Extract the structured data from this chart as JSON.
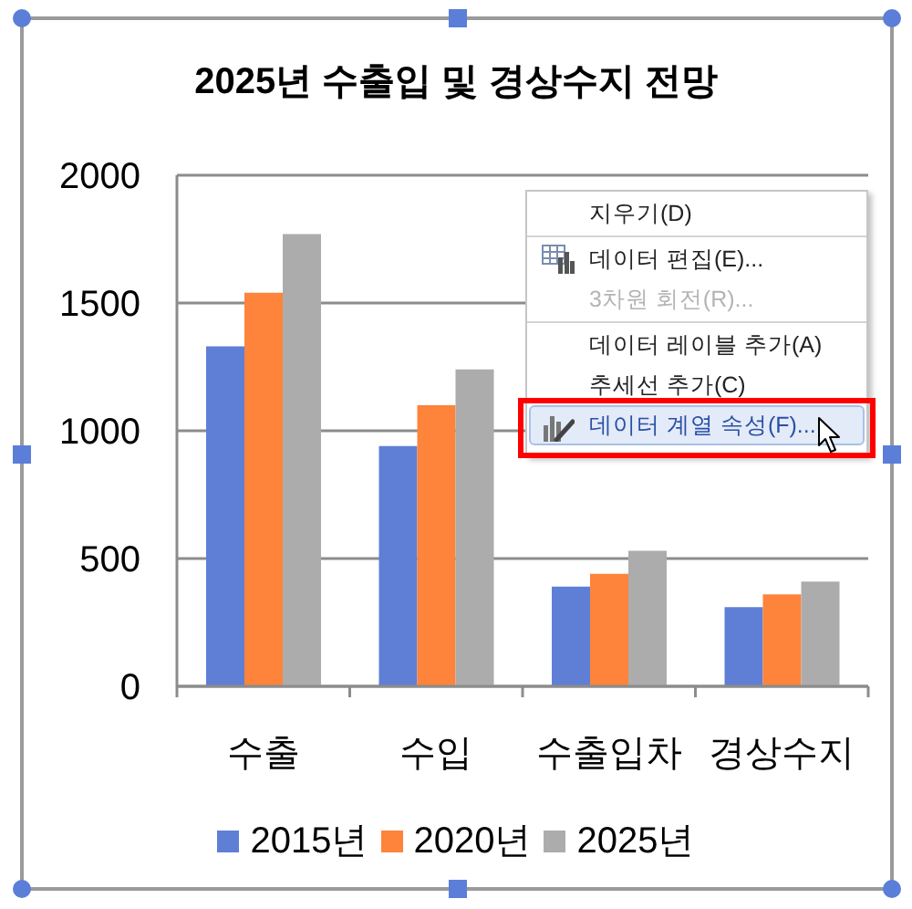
{
  "chart_data": {
    "type": "bar",
    "title": "2025년 수출입 및 경상수지 전망",
    "categories": [
      "수출",
      "수입",
      "수출입차",
      "경상수지"
    ],
    "series": [
      {
        "name": "2015년",
        "color": "#5f7fd6",
        "values": [
          1330,
          940,
          390,
          310
        ]
      },
      {
        "name": "2020년",
        "color": "#fd843a",
        "values": [
          1540,
          1100,
          440,
          360
        ]
      },
      {
        "name": "2025년",
        "color": "#acacac",
        "values": [
          1770,
          1240,
          530,
          410
        ]
      }
    ],
    "ylim": [
      0,
      2000
    ],
    "yticks": [
      0,
      500,
      1000,
      1500,
      2000
    ],
    "grid": "y",
    "legend": "bottom",
    "annotations": [
      "지우기(D)",
      "데이터 편집(E)...",
      "3차원 회전(R)...",
      "데이터 레이블 추가(A)",
      "추세선 추가(C)",
      "데이터 계열 속성(F)..."
    ]
  }
}
